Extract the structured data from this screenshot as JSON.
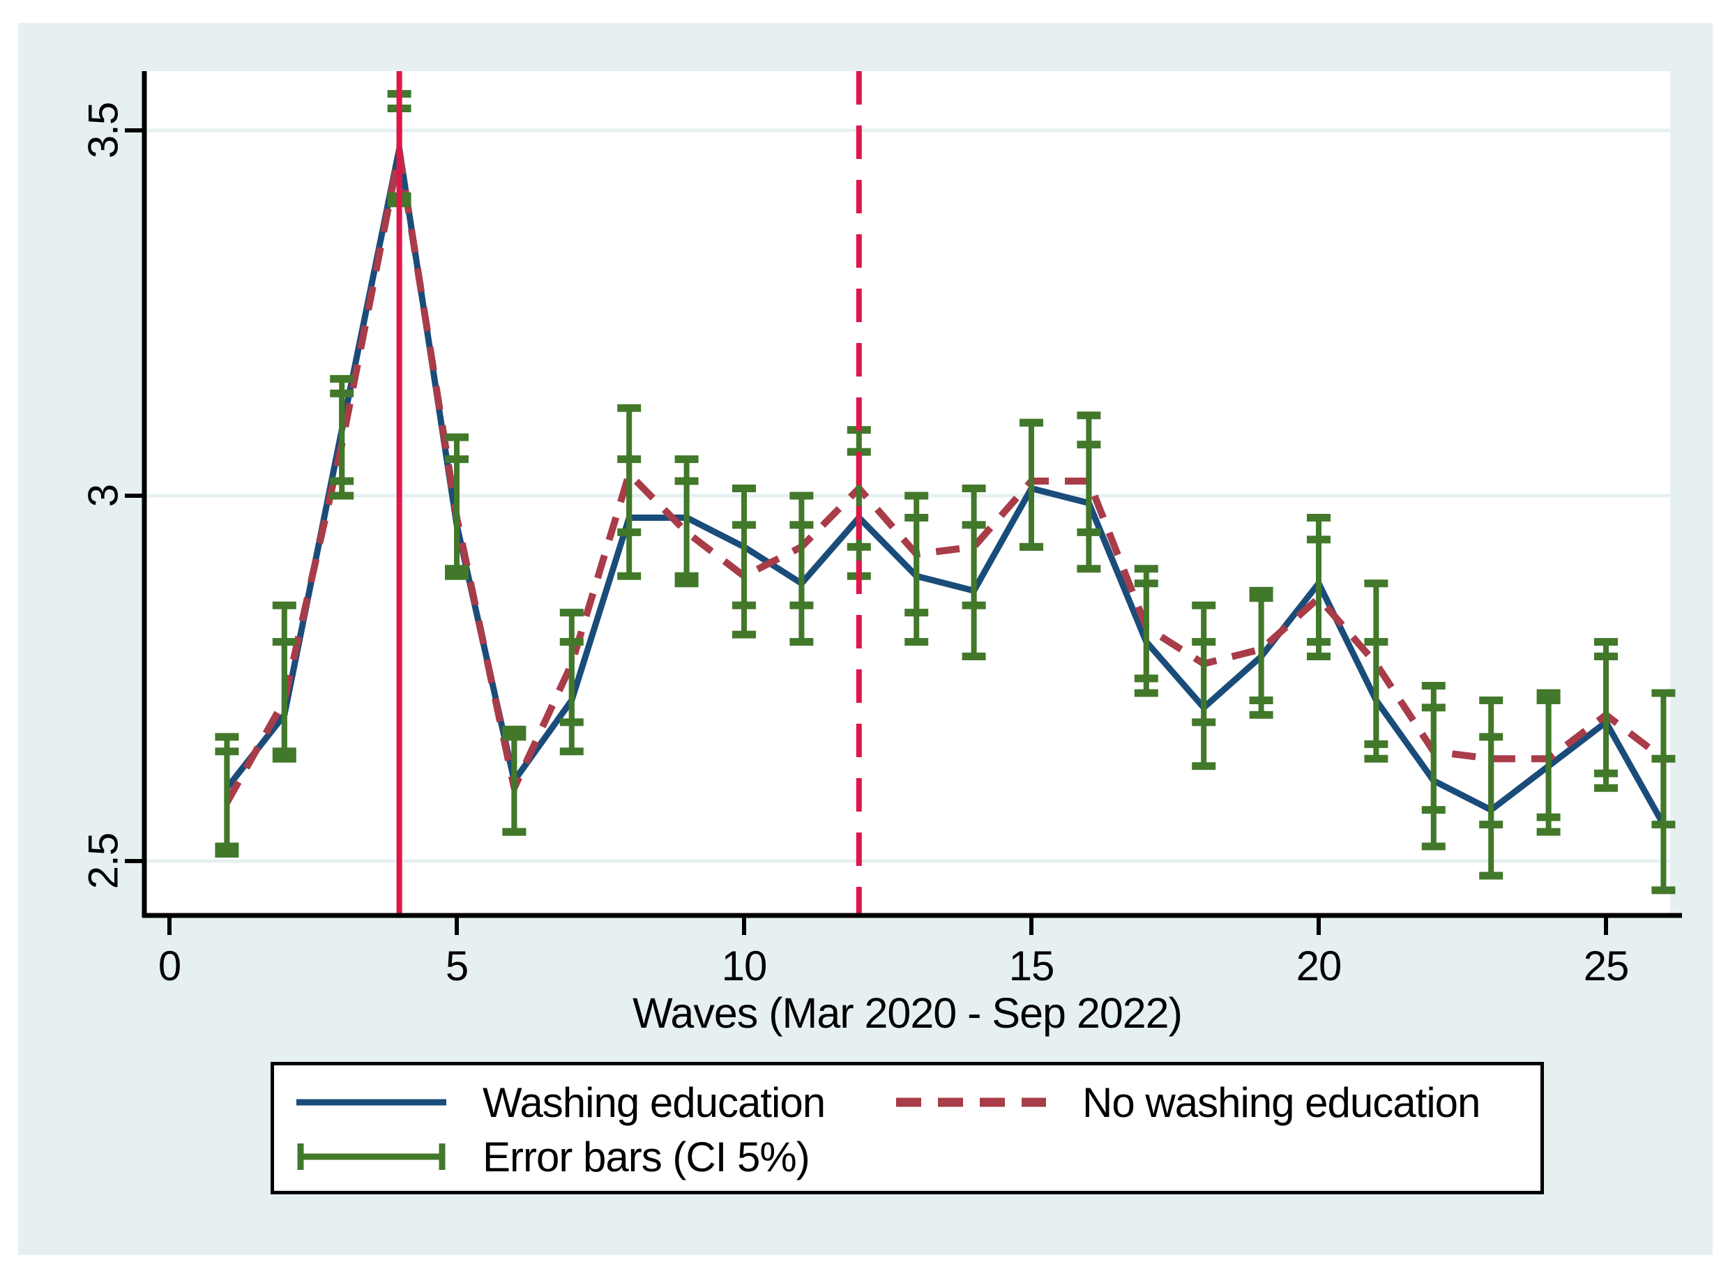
{
  "figure": {
    "background_color": "#e6f0f1",
    "plot_background_color": "#ffffff",
    "grid_color": "#e6f0f1",
    "axis_color": "#000000"
  },
  "colors": {
    "navy": "#1a4c7a",
    "maroon": "#a83c48",
    "green": "#42782a",
    "reference_red": "#e0164a"
  },
  "axes": {
    "x": {
      "title": "Waves (Mar 2020 - Sep 2022)",
      "tick_values": [
        0,
        5,
        10,
        15,
        20,
        25
      ],
      "tick_labels": [
        "0",
        "5",
        "10",
        "15",
        "20",
        "25"
      ],
      "range": [
        -0.45,
        26.35
      ]
    },
    "y": {
      "tick_values": [
        2.5,
        3,
        3.5
      ],
      "tick_labels": [
        "2.5",
        "3",
        "3.5"
      ],
      "range": [
        2.43,
        3.58
      ]
    }
  },
  "legend": {
    "entries": [
      {
        "label": "Washing education",
        "symbol": "solid-line",
        "color_key": "navy"
      },
      {
        "label": "No washing education",
        "symbol": "dashed-line",
        "color_key": "maroon"
      },
      {
        "label": "Error bars (CI 5%)",
        "symbol": "error-bar",
        "color_key": "green"
      }
    ]
  },
  "chart_data": {
    "type": "line",
    "title": "",
    "xlabel": "Waves (Mar 2020 - Sep 2022)",
    "ylabel": "",
    "x": [
      1,
      2,
      3,
      4,
      5,
      6,
      7,
      8,
      9,
      10,
      11,
      12,
      13,
      14,
      15,
      16,
      17,
      18,
      19,
      20,
      21,
      22,
      23,
      24,
      25,
      26
    ],
    "xlim": [
      -0.45,
      26.35
    ],
    "ylim": [
      2.43,
      3.58
    ],
    "grid": "horizontal",
    "legend_position": "bottom",
    "reference_lines": [
      {
        "x": 4,
        "style": "solid",
        "color_key": "reference_red"
      },
      {
        "x": 12,
        "style": "dashed",
        "color_key": "reference_red"
      }
    ],
    "series": [
      {
        "name": "Washing education",
        "style": "solid",
        "color_key": "navy",
        "values": [
          2.6,
          2.7,
          3.09,
          3.475,
          2.96,
          2.61,
          2.72,
          2.97,
          2.97,
          2.93,
          2.88,
          2.97,
          2.89,
          2.87,
          3.01,
          2.99,
          2.8,
          2.71,
          2.78,
          2.88,
          2.72,
          2.61,
          2.57,
          2.63,
          2.69,
          2.55
        ],
        "ci_lo": [
          2.52,
          2.64,
          3.02,
          3.4,
          2.9,
          2.54,
          2.65,
          2.89,
          2.89,
          2.85,
          2.8,
          2.89,
          2.8,
          2.78,
          2.93,
          2.9,
          2.73,
          2.63,
          2.7,
          2.8,
          2.64,
          2.52,
          2.48,
          2.54,
          2.6,
          2.46
        ],
        "ci_hi": [
          2.67,
          2.8,
          3.16,
          3.55,
          3.05,
          2.68,
          2.8,
          3.05,
          3.02,
          3.01,
          2.96,
          3.06,
          2.97,
          2.96,
          3.1,
          3.07,
          2.88,
          2.8,
          2.86,
          2.94,
          2.8,
          2.71,
          2.67,
          2.72,
          2.78,
          2.64
        ]
      },
      {
        "name": "No washing education",
        "style": "dashed",
        "color_key": "maroon",
        "values": [
          2.58,
          2.72,
          3.07,
          3.47,
          2.97,
          2.6,
          2.77,
          3.03,
          2.95,
          2.89,
          2.93,
          3.01,
          2.92,
          2.93,
          3.02,
          3.02,
          2.82,
          2.77,
          2.79,
          2.86,
          2.77,
          2.65,
          2.64,
          2.64,
          2.7,
          2.64
        ],
        "ci_lo": [
          2.51,
          2.65,
          3.0,
          3.41,
          2.89,
          2.54,
          2.69,
          2.95,
          2.88,
          2.81,
          2.85,
          2.93,
          2.84,
          2.85,
          2.93,
          2.95,
          2.75,
          2.69,
          2.72,
          2.78,
          2.66,
          2.57,
          2.55,
          2.56,
          2.62,
          2.55
        ],
        "ci_hi": [
          2.65,
          2.85,
          3.14,
          3.53,
          3.08,
          2.67,
          2.84,
          3.12,
          3.05,
          2.96,
          3.0,
          3.09,
          3.0,
          3.01,
          3.1,
          3.11,
          2.9,
          2.85,
          2.87,
          2.97,
          2.88,
          2.74,
          2.72,
          2.73,
          2.8,
          2.73
        ]
      }
    ],
    "error_bars_label": "Error bars (CI 5%)"
  }
}
